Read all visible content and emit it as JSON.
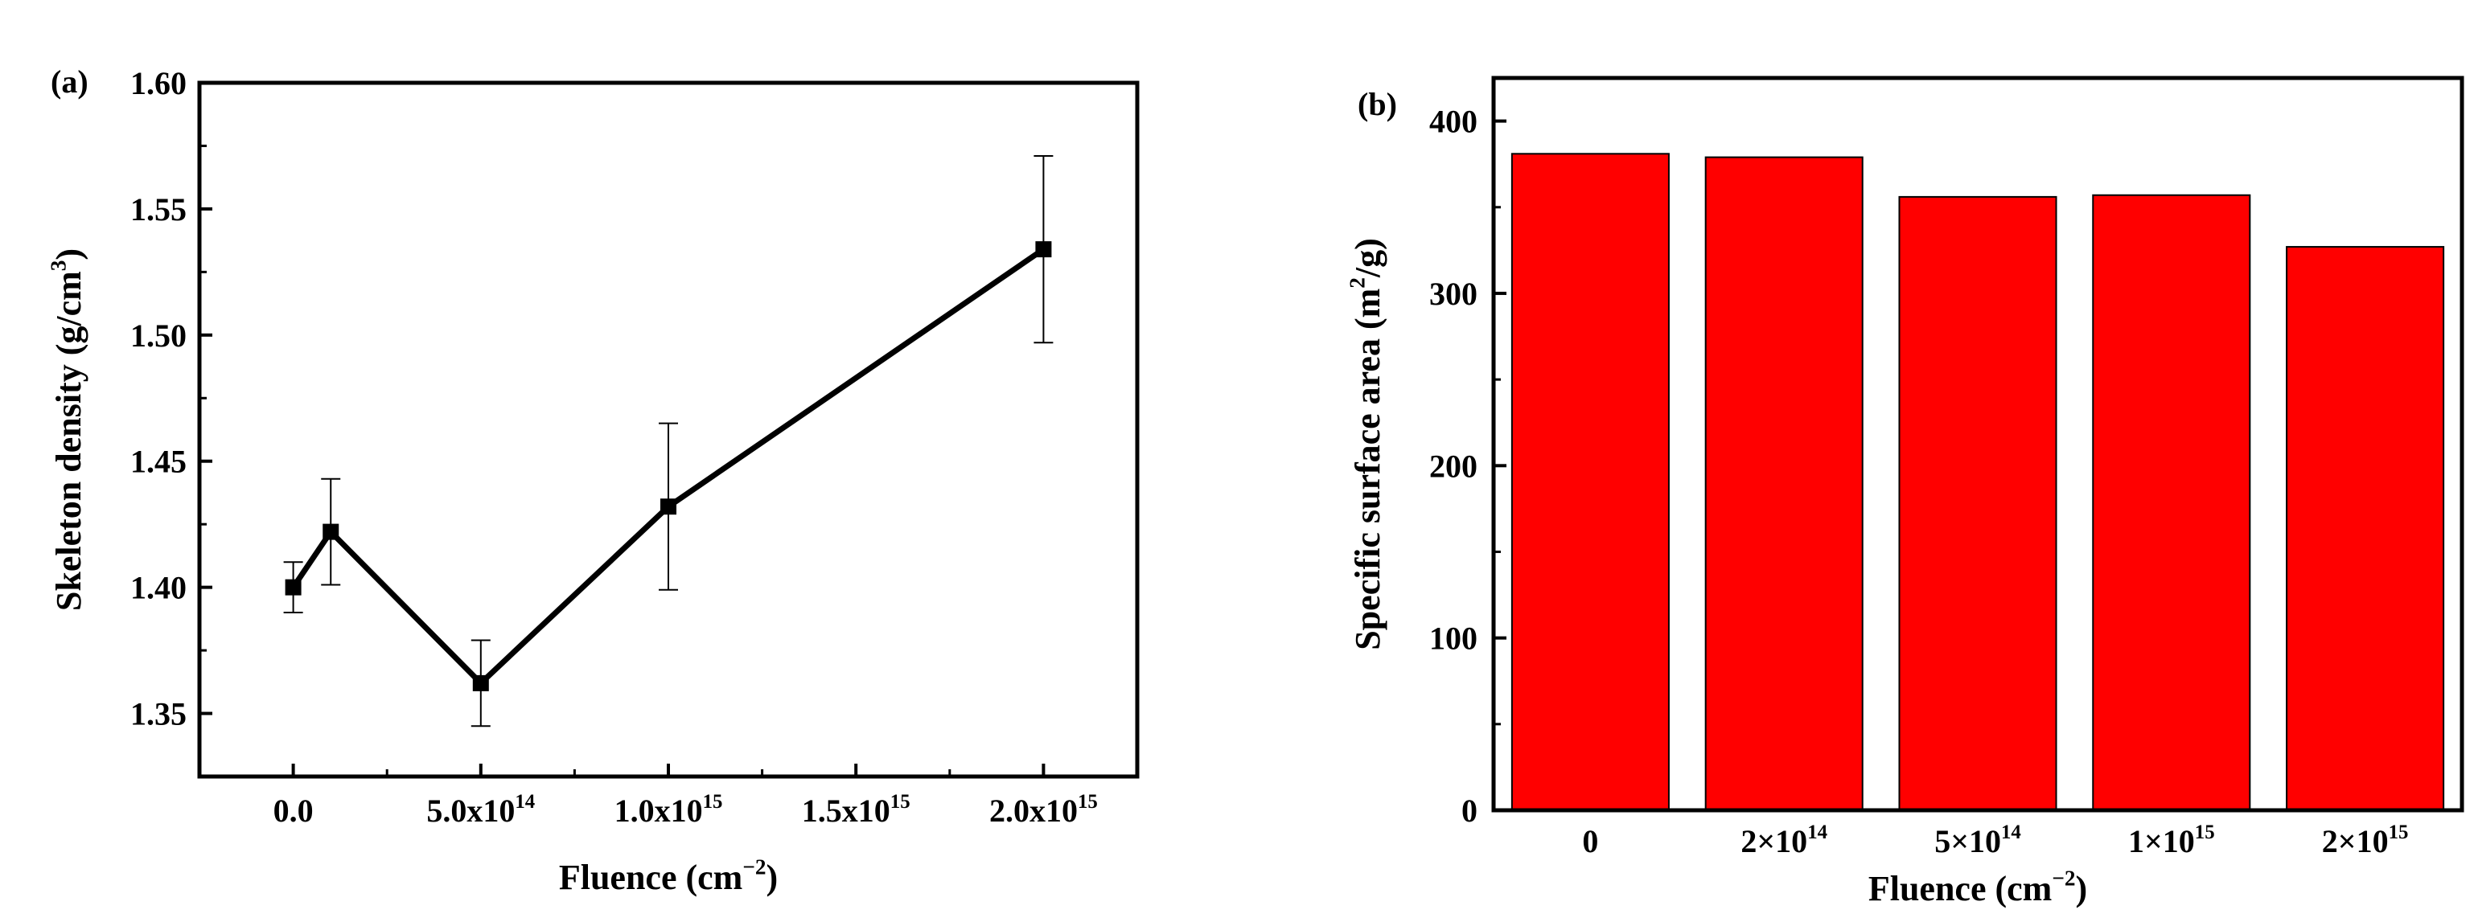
{
  "chart_data": [
    {
      "panel_label": "(a)",
      "type": "line",
      "xlabel": "Fluence (cm",
      "xlabel_sup": "−2",
      "xlabel_suffix": ")",
      "ylabel": "Skeleton density (g/cm",
      "ylabel_sup": "3",
      "ylabel_suffix": ")",
      "xlim": [
        -250000000000000.0,
        2250000000000000.0
      ],
      "ylim": [
        1.325,
        1.6
      ],
      "x_ticks": [
        {
          "value": 0,
          "base": "0.0",
          "exp": ""
        },
        {
          "value": 500000000000000.0,
          "base": "5.0x10",
          "exp": "14"
        },
        {
          "value": 1000000000000000.0,
          "base": "1.0x10",
          "exp": "15"
        },
        {
          "value": 1500000000000000.0,
          "base": "1.5x10",
          "exp": "15"
        },
        {
          "value": 2000000000000000.0,
          "base": "2.0x10",
          "exp": "15"
        }
      ],
      "y_ticks": [
        {
          "value": 1.35,
          "label": "1.35"
        },
        {
          "value": 1.4,
          "label": "1.40"
        },
        {
          "value": 1.45,
          "label": "1.45"
        },
        {
          "value": 1.5,
          "label": "1.50"
        },
        {
          "value": 1.55,
          "label": "1.55"
        },
        {
          "value": 1.6,
          "label": "1.60"
        }
      ],
      "series": [
        {
          "x": [
            0,
            100000000000000.0,
            500000000000000.0,
            1000000000000000.0,
            2000000000000000.0
          ],
          "y": [
            1.4,
            1.422,
            1.362,
            1.432,
            1.534
          ],
          "y_err": [
            0.01,
            0.021,
            0.017,
            0.033,
            0.037
          ]
        }
      ],
      "color": "#000000"
    },
    {
      "panel_label": "(b)",
      "type": "bar",
      "xlabel": "Fluence (cm",
      "xlabel_sup": "−2",
      "xlabel_suffix": ")",
      "ylabel": "Specific surface area (m",
      "ylabel_sup": "2",
      "ylabel_suffix": "/g)",
      "ylim": [
        0,
        425
      ],
      "categories": [
        {
          "base": "0",
          "exp": ""
        },
        {
          "base": "2×10",
          "exp": "14"
        },
        {
          "base": "5×10",
          "exp": "14"
        },
        {
          "base": "1×10",
          "exp": "15"
        },
        {
          "base": "2×10",
          "exp": "15"
        }
      ],
      "values": [
        381,
        379,
        356,
        357,
        327
      ],
      "y_ticks": [
        {
          "value": 0,
          "label": "0"
        },
        {
          "value": 100,
          "label": "100"
        },
        {
          "value": 200,
          "label": "200"
        },
        {
          "value": 300,
          "label": "300"
        },
        {
          "value": 400,
          "label": "400"
        }
      ],
      "bar_color": "#ff0000"
    }
  ]
}
